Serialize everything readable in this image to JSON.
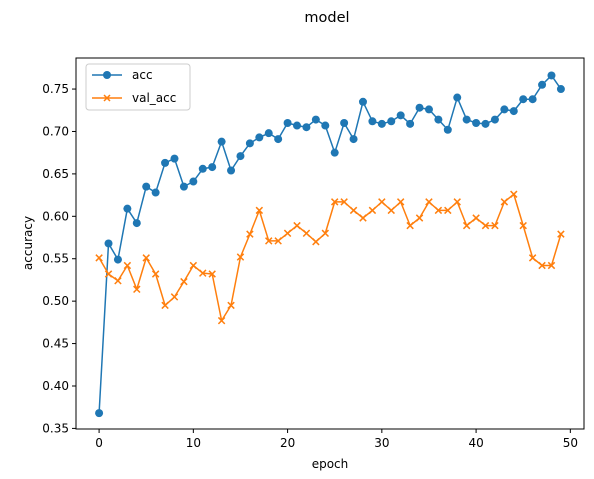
{
  "chart_data": {
    "type": "line",
    "title": "model",
    "xlabel": "epoch",
    "ylabel": "accuracy",
    "xlim": [
      -2.45,
      51.45
    ],
    "ylim": [
      0.3493,
      0.7866
    ],
    "xticks": [
      0,
      10,
      20,
      30,
      40,
      50
    ],
    "yticks": [
      0.35,
      0.4,
      0.45,
      0.5,
      0.55,
      0.6,
      0.65,
      0.7,
      0.75
    ],
    "ytick_labels": [
      "0.35",
      "0.40",
      "0.45",
      "0.50",
      "0.55",
      "0.60",
      "0.65",
      "0.70",
      "0.75"
    ],
    "grid": false,
    "legend_position": "upper left",
    "x": [
      0,
      1,
      2,
      3,
      4,
      5,
      6,
      7,
      8,
      9,
      10,
      11,
      12,
      13,
      14,
      15,
      16,
      17,
      18,
      19,
      20,
      21,
      22,
      23,
      24,
      25,
      26,
      27,
      28,
      29,
      30,
      31,
      32,
      33,
      34,
      35,
      36,
      37,
      38,
      39,
      40,
      41,
      42,
      43,
      44,
      45,
      46,
      47,
      48,
      49
    ],
    "series": [
      {
        "name": "acc",
        "color": "#1f77b4",
        "marker": "circle",
        "values": [
          0.368,
          0.568,
          0.549,
          0.609,
          0.592,
          0.635,
          0.628,
          0.663,
          0.668,
          0.635,
          0.641,
          0.656,
          0.658,
          0.688,
          0.654,
          0.671,
          0.686,
          0.693,
          0.698,
          0.691,
          0.71,
          0.707,
          0.705,
          0.714,
          0.707,
          0.675,
          0.71,
          0.691,
          0.735,
          0.712,
          0.709,
          0.712,
          0.719,
          0.709,
          0.728,
          0.726,
          0.714,
          0.702,
          0.74,
          0.714,
          0.71,
          0.709,
          0.714,
          0.726,
          0.724,
          0.738,
          0.738,
          0.755,
          0.766,
          0.75
        ]
      },
      {
        "name": "val_acc",
        "color": "#ff7f0e",
        "marker": "x",
        "values": [
          0.551,
          0.532,
          0.524,
          0.542,
          0.514,
          0.551,
          0.532,
          0.495,
          0.505,
          0.523,
          0.542,
          0.533,
          0.532,
          0.477,
          0.495,
          0.552,
          0.579,
          0.607,
          0.571,
          0.571,
          0.58,
          0.589,
          0.58,
          0.57,
          0.58,
          0.617,
          0.617,
          0.607,
          0.598,
          0.607,
          0.617,
          0.607,
          0.617,
          0.589,
          0.598,
          0.617,
          0.607,
          0.607,
          0.617,
          0.589,
          0.598,
          0.589,
          0.589,
          0.617,
          0.626,
          0.589,
          0.551,
          0.542,
          0.542,
          0.579
        ]
      }
    ]
  }
}
